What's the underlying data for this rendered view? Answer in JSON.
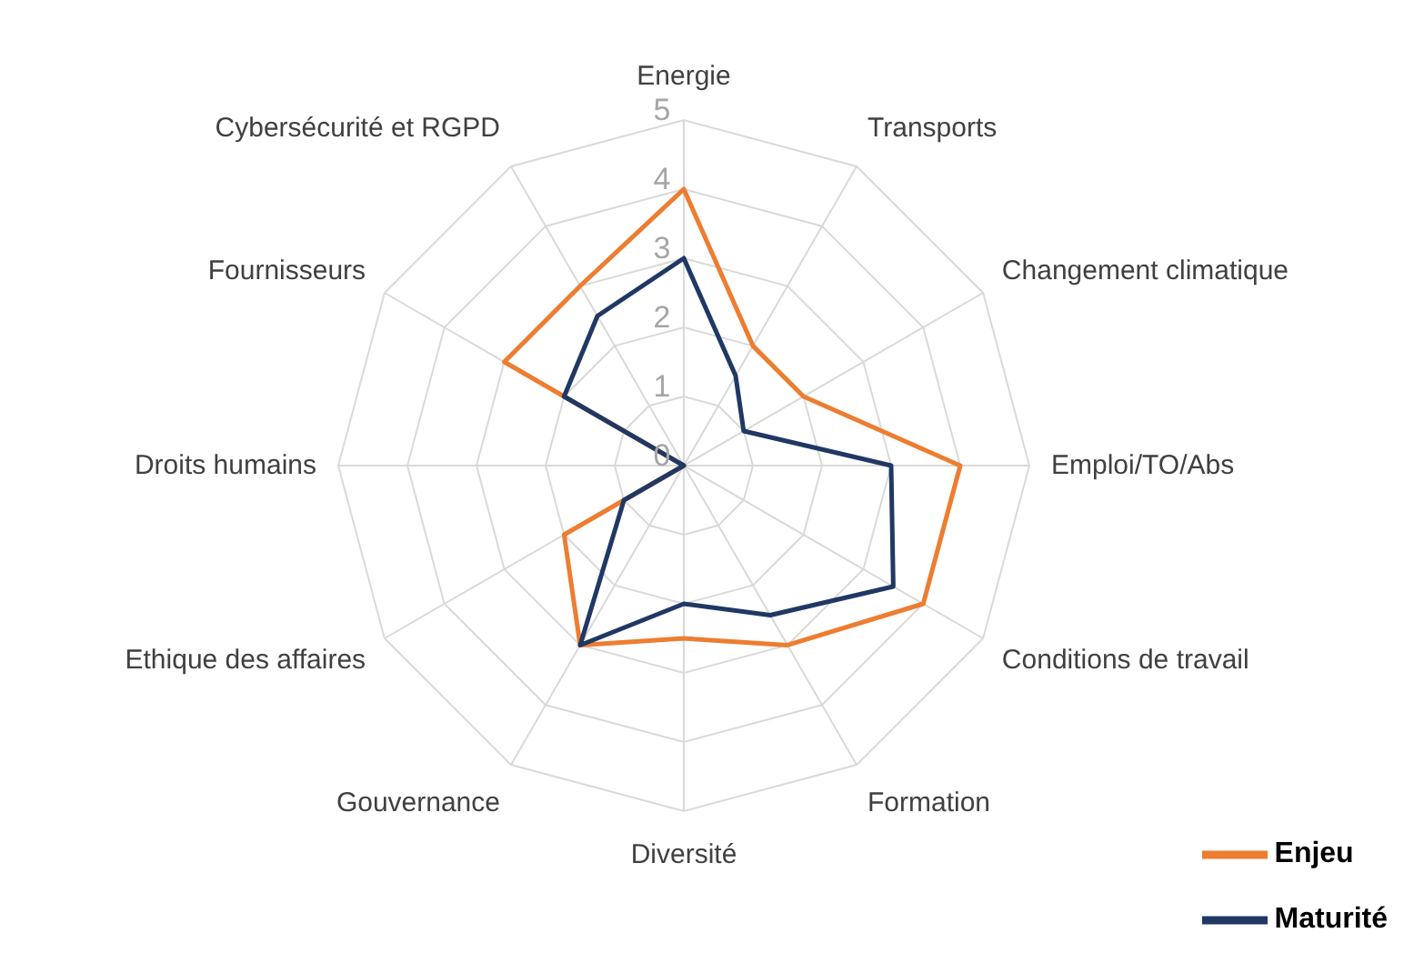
{
  "chart_data": {
    "type": "radar",
    "categories": [
      "Energie",
      "Transports",
      "Changement climatique",
      "Emploi/TO/Abs",
      "Conditions de travail",
      "Formation",
      "Diversité",
      "Gouvernance",
      "Ethique des affaires",
      "Droits humains",
      "Fournisseurs",
      "Cybersécurité et RGPD"
    ],
    "series": [
      {
        "name": "Enjeu",
        "color": "#ed7d31",
        "values": [
          4,
          2,
          2,
          4,
          4,
          3,
          2.5,
          3,
          2,
          0,
          3,
          3
        ]
      },
      {
        "name": "Maturité",
        "color": "#203864",
        "values": [
          3,
          1.5,
          1,
          3,
          3.5,
          2.5,
          2,
          3,
          1,
          0,
          2,
          2.5
        ]
      }
    ],
    "ylim": [
      0,
      5
    ],
    "yticks": [
      0,
      1,
      2,
      3,
      4,
      5
    ],
    "grid": true,
    "legend": "bottom right",
    "marker": "none"
  }
}
